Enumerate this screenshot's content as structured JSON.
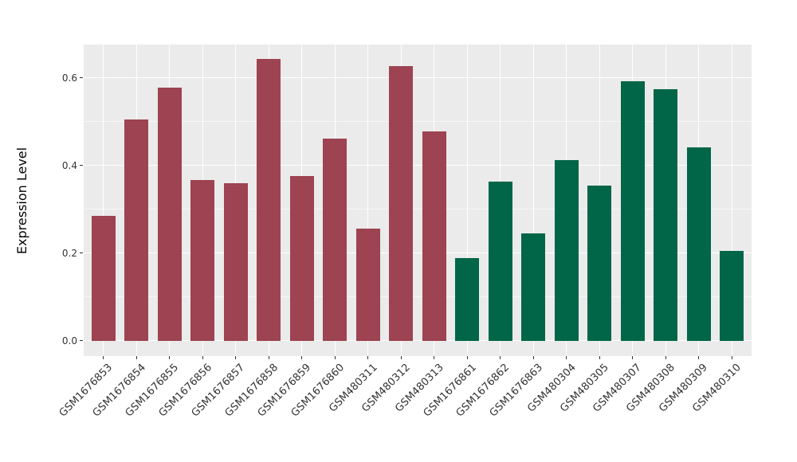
{
  "chart_data": {
    "type": "bar",
    "title": "",
    "xlabel": "",
    "ylabel": "Expression Level",
    "categories": [
      "GSM1676853",
      "GSM1676854",
      "GSM1676855",
      "GSM1676856",
      "GSM1676857",
      "GSM1676858",
      "GSM1676859",
      "GSM1676860",
      "GSM480311",
      "GSM480312",
      "GSM480313",
      "GSM1676861",
      "GSM1676862",
      "GSM1676863",
      "GSM480304",
      "GSM480305",
      "GSM480307",
      "GSM480308",
      "GSM480309",
      "GSM480310"
    ],
    "values": [
      0.284,
      0.504,
      0.577,
      0.366,
      0.359,
      0.643,
      0.376,
      0.461,
      0.256,
      0.627,
      0.477,
      0.188,
      0.363,
      0.245,
      0.412,
      0.354,
      0.592,
      0.573,
      0.441,
      0.205
    ],
    "groups": [
      "group1",
      "group1",
      "group1",
      "group1",
      "group1",
      "group1",
      "group1",
      "group1",
      "group1",
      "group1",
      "group1",
      "group2",
      "group2",
      "group2",
      "group2",
      "group2",
      "group2",
      "group2",
      "group2",
      "group2"
    ],
    "group_colors": {
      "group1": "#9d4351",
      "group2": "#006647"
    },
    "ylim": [
      0,
      0.675
    ],
    "yticks": [
      0,
      0.2,
      0.4,
      0.6
    ],
    "ytick_labels": [
      "0.0",
      "0.2",
      "0.4",
      "0.6"
    ],
    "minor_gridlines": [
      0.1,
      0.3,
      0.5
    ],
    "grid": true,
    "legend": "none",
    "panel_background": "#ebebeb",
    "grid_color": "#ffffff",
    "tick_color": "#333333"
  }
}
